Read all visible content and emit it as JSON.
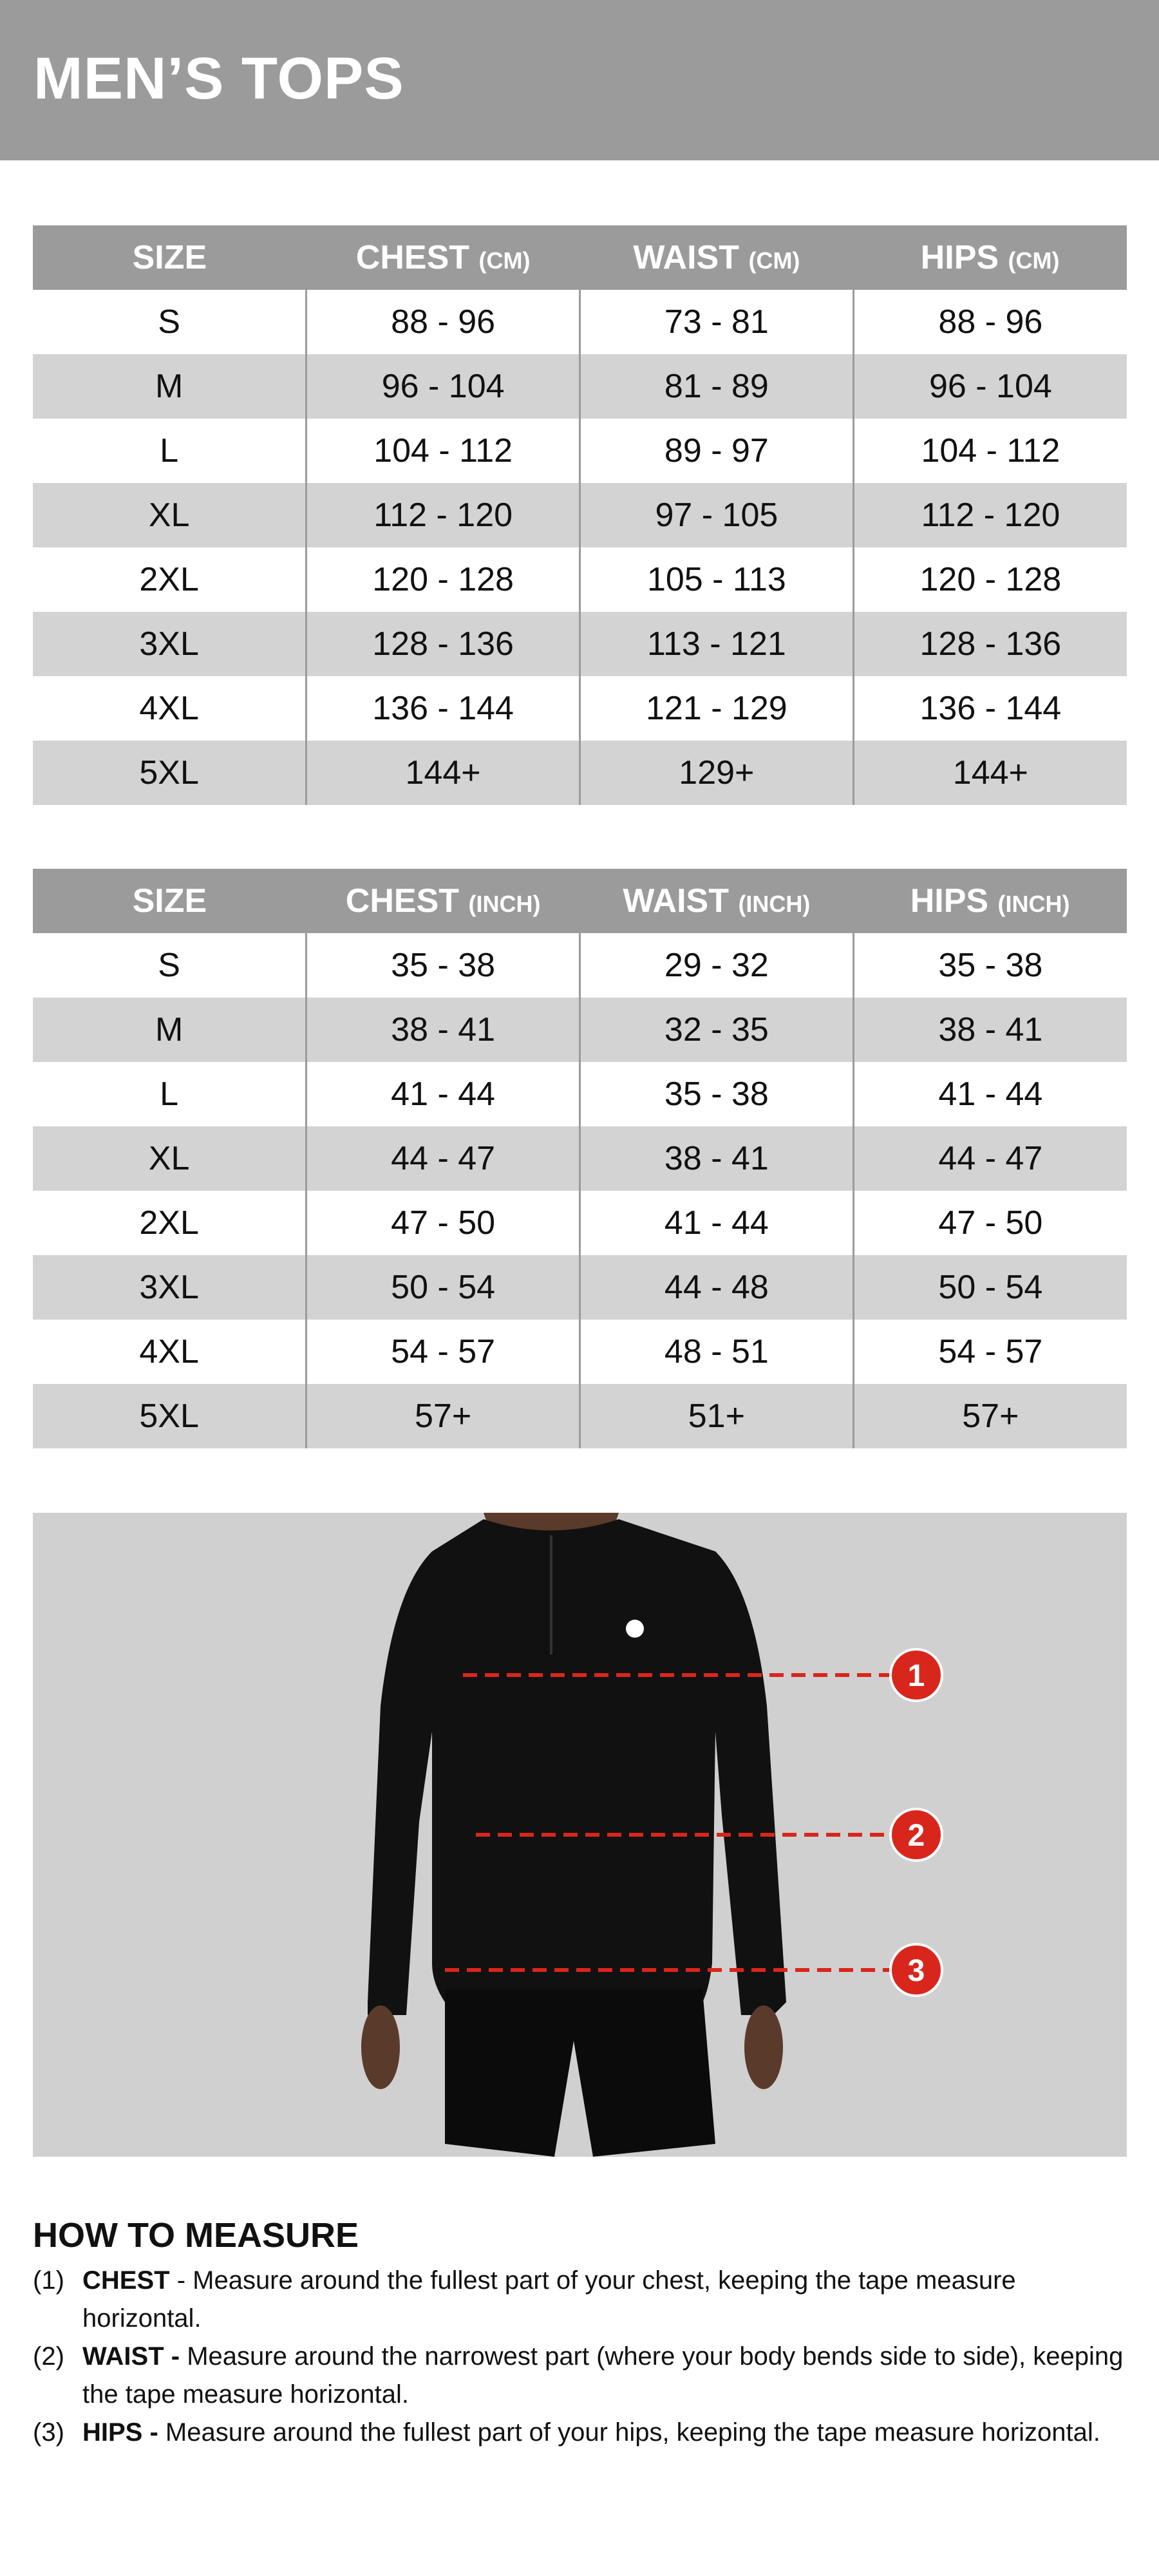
{
  "title": "MEN’S TOPS",
  "tables": [
    {
      "headers": [
        {
          "label": "SIZE",
          "unit": ""
        },
        {
          "label": "CHEST",
          "unit": "(CM)"
        },
        {
          "label": "WAIST",
          "unit": "(CM)"
        },
        {
          "label": "HIPS",
          "unit": "(CM)"
        }
      ],
      "rows": [
        [
          "S",
          "88 - 96",
          "73 - 81",
          "88 - 96"
        ],
        [
          "M",
          "96 - 104",
          "81 - 89",
          "96 - 104"
        ],
        [
          "L",
          "104 - 112",
          "89 - 97",
          "104 - 112"
        ],
        [
          "XL",
          "112 - 120",
          "97 - 105",
          "112 - 120"
        ],
        [
          "2XL",
          "120 - 128",
          "105 - 113",
          "120 - 128"
        ],
        [
          "3XL",
          "128 - 136",
          "113 - 121",
          "128 - 136"
        ],
        [
          "4XL",
          "136 - 144",
          "121 - 129",
          "136 - 144"
        ],
        [
          "5XL",
          "144+",
          "129+",
          "144+"
        ]
      ]
    },
    {
      "headers": [
        {
          "label": "SIZE",
          "unit": ""
        },
        {
          "label": "CHEST",
          "unit": "(INCH)"
        },
        {
          "label": "WAIST",
          "unit": "(INCH)"
        },
        {
          "label": "HIPS",
          "unit": "(INCH)"
        }
      ],
      "rows": [
        [
          "S",
          "35 - 38",
          "29 - 32",
          "35 - 38"
        ],
        [
          "M",
          "38 - 41",
          "32 - 35",
          "38 - 41"
        ],
        [
          "L",
          "41 - 44",
          "35 - 38",
          "41 - 44"
        ],
        [
          "XL",
          "44 - 47",
          "38 - 41",
          "44 - 47"
        ],
        [
          "2XL",
          "47 - 50",
          "41 - 44",
          "47 - 50"
        ],
        [
          "3XL",
          "50 - 54",
          "44 - 48",
          "50 - 54"
        ],
        [
          "4XL",
          "54 - 57",
          "48 - 51",
          "54 - 57"
        ],
        [
          "5XL",
          "57+",
          "51+",
          "57+"
        ]
      ]
    }
  ],
  "photo": {
    "markers": [
      "1",
      "2",
      "3"
    ],
    "marker_color": "#d9261c"
  },
  "how_to_measure": {
    "heading": "HOW TO MEASURE",
    "items": [
      {
        "num": "(1)",
        "term": "CHEST",
        "text": " - Measure around the fullest part of your chest, keeping the tape measure horizontal."
      },
      {
        "num": "(2)",
        "term": "WAIST -",
        "text": " Measure around the narrowest part (where your body bends side to side), keeping the tape measure horizontal."
      },
      {
        "num": "(3)",
        "term": "HIPS -",
        "text": " Measure around the fullest part of your hips, keeping the tape measure horizontal."
      }
    ]
  },
  "colors": {
    "header_gray": "#9b9b9b",
    "row_alt": "#d3d3d3",
    "marker_red": "#d9261c"
  }
}
